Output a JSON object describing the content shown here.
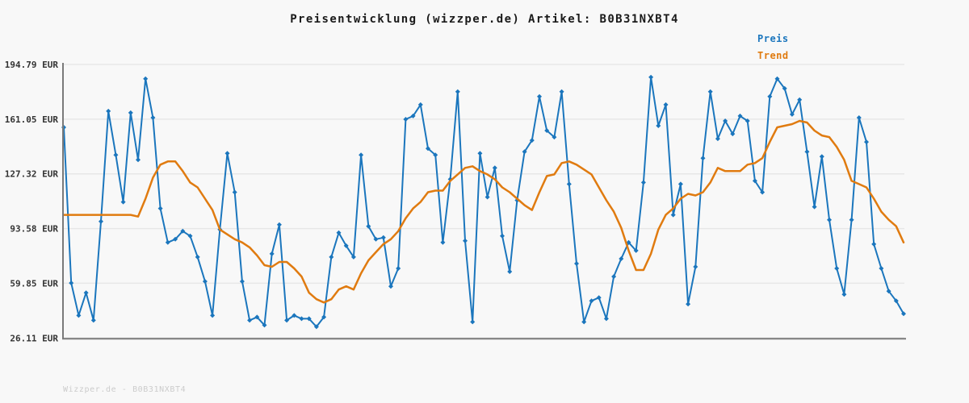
{
  "page": {
    "background": "#f8f8f8"
  },
  "header": {
    "title": "Preisentwicklung (wizzper.de) Artikel: B0B31NXBT4"
  },
  "legend": {
    "position": "top-right",
    "items": [
      {
        "label": "Preis",
        "color": "#1b76bd"
      },
      {
        "label": "Trend",
        "color": "#e07b10"
      }
    ]
  },
  "watermark": {
    "text": "Wizzper.de - B0B31NXBT4"
  },
  "colors": {
    "background": "#f8f8f8",
    "grid": "#e7e7e7",
    "axis": "#7a7a7a",
    "tick_text": "#333333",
    "title_text": "#1a1a1a",
    "price_line": "#1b76bd",
    "trend_line": "#e07b10",
    "watermark": "#cccccc"
  },
  "chart_data": {
    "type": "line",
    "title": "Preisentwicklung (wizzper.de) Artikel: B0B31NXBT4",
    "xlabel": "",
    "ylabel": "",
    "unit": "EUR",
    "grid": "horizontal-only",
    "legend_position": "top-right",
    "x_tick_labels_visible": false,
    "num_points": 114,
    "ylim": [
      26.11,
      194.79
    ],
    "y_axis": {
      "tick_values": [
        26.11,
        59.85,
        93.58,
        127.32,
        161.05,
        194.79
      ],
      "tick_labels": [
        "26.11 EUR",
        "59.85 EUR",
        "93.58 EUR",
        "127.32 EUR",
        "161.05 EUR",
        "194.79 EUR"
      ]
    },
    "series": [
      {
        "name": "Preis",
        "color": "#1b76bd",
        "marker": "diamond",
        "values": [
          156,
          60,
          40,
          54,
          37,
          98,
          166,
          139,
          110,
          165,
          136,
          186,
          162,
          106,
          85,
          87,
          92,
          89,
          76,
          61,
          40,
          93,
          140,
          116,
          61,
          37,
          39,
          34,
          78,
          96,
          37,
          40,
          38,
          38,
          33,
          39,
          76,
          91,
          83,
          76,
          139,
          95,
          87,
          88,
          58,
          69,
          161,
          163,
          170,
          143,
          139,
          85,
          124,
          178,
          86,
          36,
          140,
          113,
          131,
          89,
          67,
          111,
          141,
          148,
          175,
          154,
          150,
          178,
          121,
          72,
          36,
          49,
          51,
          38,
          64,
          75,
          85,
          80,
          122,
          187,
          157,
          170,
          102,
          121,
          47,
          70,
          137,
          178,
          149,
          160,
          152,
          163,
          160,
          123,
          116,
          175,
          186,
          180,
          164,
          173,
          141,
          107,
          138,
          99,
          69,
          53,
          99,
          162,
          147,
          84,
          69,
          55,
          49,
          41
        ]
      },
      {
        "name": "Trend",
        "color": "#e07b10",
        "marker": "none",
        "values": [
          102,
          102,
          102,
          102,
          102,
          102,
          102,
          102,
          102,
          102,
          101,
          112,
          125,
          133,
          135,
          135,
          129,
          122,
          119,
          112,
          105,
          93,
          90,
          87,
          85,
          82,
          77,
          71,
          70,
          73,
          73,
          69,
          64,
          54,
          50,
          48,
          50,
          56,
          58,
          56,
          66,
          74,
          79,
          84,
          87,
          92,
          100,
          106,
          110,
          116,
          117,
          117,
          123,
          127,
          131,
          132,
          129,
          127,
          124,
          119,
          116,
          112,
          108,
          105,
          116,
          126,
          127,
          134,
          135,
          133,
          130,
          127,
          119,
          111,
          104,
          94,
          80,
          68,
          68,
          78,
          93,
          102,
          106,
          112,
          115,
          114,
          116,
          122,
          131,
          129,
          129,
          129,
          133,
          134,
          137,
          147,
          156,
          157,
          158,
          160,
          159,
          154,
          151,
          150,
          144,
          136,
          123,
          121,
          119,
          112,
          104,
          99,
          95,
          85
        ]
      }
    ]
  }
}
